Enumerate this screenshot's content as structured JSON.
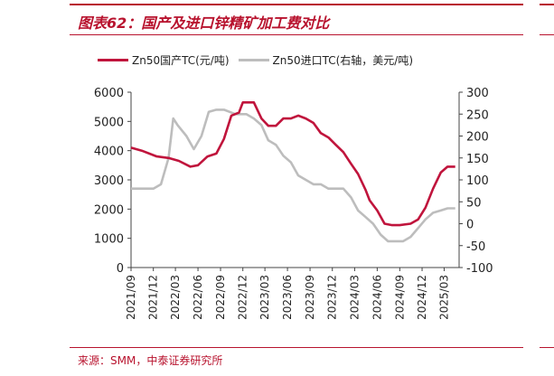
{
  "header": {
    "title": "图表62：国产及进口锌精矿加工费对比"
  },
  "footer": {
    "source": "来源：SMM，中泰证券研究所"
  },
  "colors": {
    "accent": "#b8132e",
    "series_domestic": "#c0143c",
    "series_import": "#bdbdbd"
  },
  "chart_data": {
    "type": "line",
    "title": "图表62：国产及进口锌精矿加工费对比",
    "xlabel": "",
    "ylabel": "",
    "y_left_lim": [
      0,
      6000
    ],
    "y_left_ticks": [
      0,
      1000,
      2000,
      3000,
      4000,
      5000,
      6000
    ],
    "y_right_lim": [
      -100,
      300
    ],
    "y_right_ticks": [
      -100,
      -50,
      0,
      50,
      100,
      150,
      200,
      250,
      300
    ],
    "x_range": [
      "2021-09",
      "2025-05"
    ],
    "x_ticks": [
      "2021/09",
      "2021/12",
      "2022/03",
      "2022/06",
      "2022/09",
      "2022/12",
      "2023/03",
      "2023/06",
      "2023/09",
      "2023/12",
      "2024/03",
      "2024/06",
      "2024/09",
      "2024/12",
      "2025/03"
    ],
    "grid": false,
    "legend_position": "top",
    "series": [
      {
        "name": "Zn50国产TC(元/吨)",
        "axis": "left",
        "points": [
          [
            "2021-09-01",
            4100
          ],
          [
            "2021-10-15",
            4000
          ],
          [
            "2021-12-15",
            3800
          ],
          [
            "2022-02-01",
            3750
          ],
          [
            "2022-03-15",
            3650
          ],
          [
            "2022-05-01",
            3450
          ],
          [
            "2022-06-01",
            3500
          ],
          [
            "2022-07-10",
            3800
          ],
          [
            "2022-08-15",
            3900
          ],
          [
            "2022-09-15",
            4400
          ],
          [
            "2022-10-15",
            5200
          ],
          [
            "2022-11-15",
            5300
          ],
          [
            "2022-12-01",
            5650
          ],
          [
            "2023-01-15",
            5650
          ],
          [
            "2023-02-15",
            5100
          ],
          [
            "2023-03-15",
            4850
          ],
          [
            "2023-04-15",
            4850
          ],
          [
            "2023-05-15",
            5100
          ],
          [
            "2023-06-15",
            5100
          ],
          [
            "2023-07-15",
            5200
          ],
          [
            "2023-08-15",
            5100
          ],
          [
            "2023-09-15",
            4950
          ],
          [
            "2023-10-15",
            4600
          ],
          [
            "2023-11-15",
            4450
          ],
          [
            "2023-12-15",
            4200
          ],
          [
            "2024-01-15",
            3950
          ],
          [
            "2024-02-15",
            3550
          ],
          [
            "2024-03-15",
            3200
          ],
          [
            "2024-04-15",
            2650
          ],
          [
            "2024-05-01",
            2300
          ],
          [
            "2024-06-01",
            1950
          ],
          [
            "2024-07-01",
            1500
          ],
          [
            "2024-08-01",
            1450
          ],
          [
            "2024-09-01",
            1450
          ],
          [
            "2024-10-15",
            1500
          ],
          [
            "2024-11-15",
            1650
          ],
          [
            "2024-12-15",
            2050
          ],
          [
            "2025-01-15",
            2700
          ],
          [
            "2025-02-15",
            3250
          ],
          [
            "2025-03-15",
            3450
          ],
          [
            "2025-04-15",
            3450
          ]
        ]
      },
      {
        "name": "Zn50进口TC(右轴，美元/吨)",
        "axis": "right",
        "points": [
          [
            "2021-09-01",
            80
          ],
          [
            "2021-10-15",
            80
          ],
          [
            "2021-12-01",
            80
          ],
          [
            "2022-01-01",
            90
          ],
          [
            "2022-02-01",
            150
          ],
          [
            "2022-02-20",
            240
          ],
          [
            "2022-03-10",
            225
          ],
          [
            "2022-04-15",
            200
          ],
          [
            "2022-05-15",
            170
          ],
          [
            "2022-06-15",
            200
          ],
          [
            "2022-07-15",
            255
          ],
          [
            "2022-08-15",
            260
          ],
          [
            "2022-09-15",
            260
          ],
          [
            "2022-11-01",
            250
          ],
          [
            "2022-12-15",
            250
          ],
          [
            "2023-01-15",
            240
          ],
          [
            "2023-02-15",
            225
          ],
          [
            "2023-03-15",
            190
          ],
          [
            "2023-04-15",
            180
          ],
          [
            "2023-05-15",
            155
          ],
          [
            "2023-06-15",
            140
          ],
          [
            "2023-07-15",
            110
          ],
          [
            "2023-08-15",
            100
          ],
          [
            "2023-09-15",
            90
          ],
          [
            "2023-10-15",
            90
          ],
          [
            "2023-11-15",
            80
          ],
          [
            "2023-12-15",
            80
          ],
          [
            "2024-01-15",
            80
          ],
          [
            "2024-02-15",
            60
          ],
          [
            "2024-03-15",
            30
          ],
          [
            "2024-04-15",
            15
          ],
          [
            "2024-05-15",
            0
          ],
          [
            "2024-06-15",
            -25
          ],
          [
            "2024-07-15",
            -40
          ],
          [
            "2024-09-15",
            -40
          ],
          [
            "2024-10-15",
            -30
          ],
          [
            "2024-11-15",
            -10
          ],
          [
            "2024-12-15",
            10
          ],
          [
            "2025-01-15",
            25
          ],
          [
            "2025-02-15",
            30
          ],
          [
            "2025-03-15",
            35
          ],
          [
            "2025-04-15",
            35
          ]
        ]
      }
    ]
  }
}
